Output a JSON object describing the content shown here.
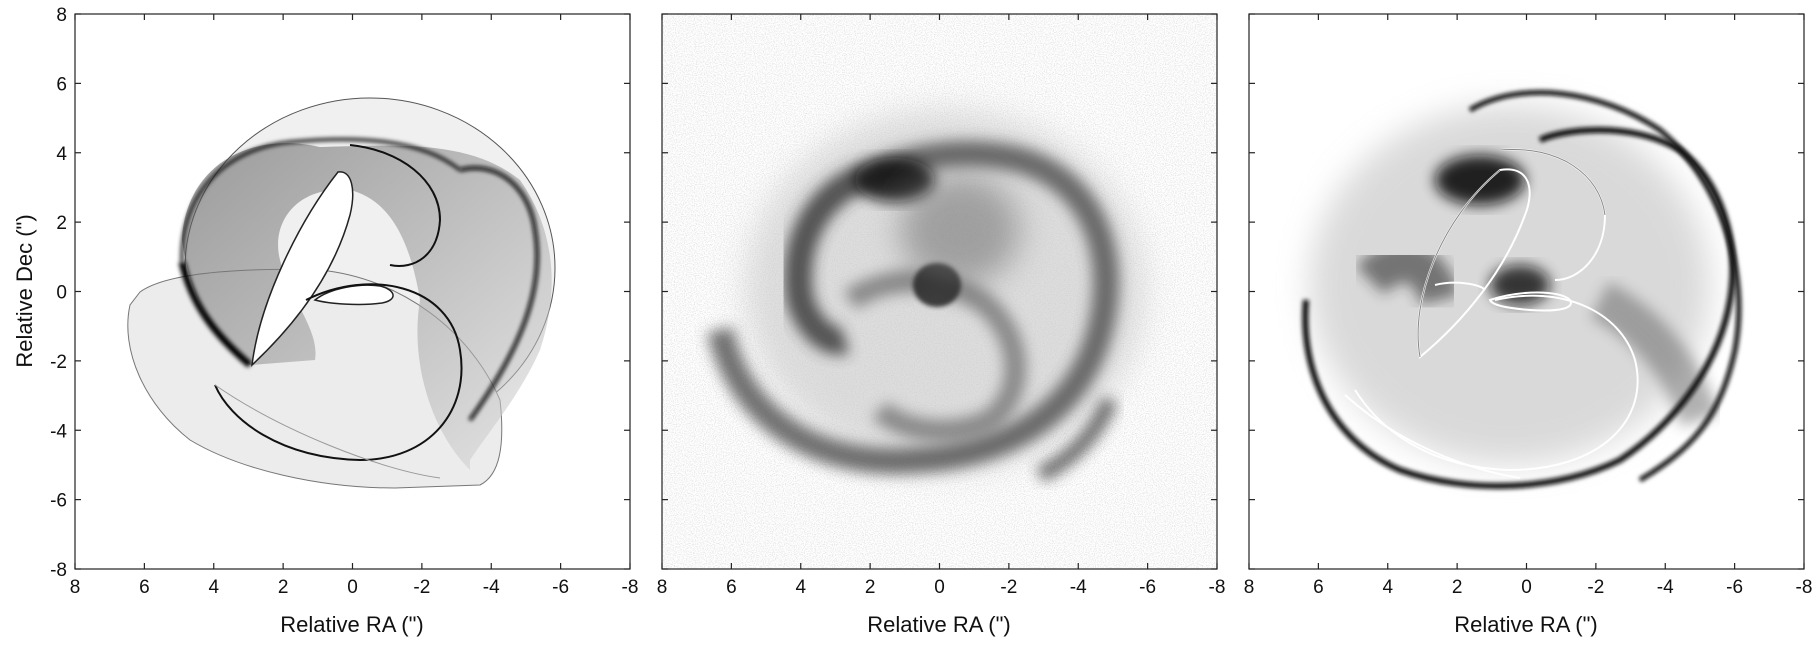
{
  "figure": {
    "panels": [
      {
        "id": "model",
        "xlabel": "Relative RA (\")",
        "ylabel": "Relative Dec (\")",
        "show_yticklabels": true
      },
      {
        "id": "observation",
        "xlabel": "Relative RA (\")",
        "ylabel": "",
        "show_yticklabels": false
      },
      {
        "id": "overlay",
        "xlabel": "Relative RA (\")",
        "ylabel": "",
        "show_yticklabels": false
      }
    ]
  },
  "chart_data": [
    {
      "type": "heatmap",
      "title": "",
      "xlabel": "Relative RA (\")",
      "ylabel": "Relative Dec (\")",
      "xlim": [
        8,
        -8
      ],
      "ylim": [
        -8,
        8
      ],
      "xticks": [
        8,
        6,
        4,
        2,
        0,
        -2,
        -4,
        -6,
        -8
      ],
      "yticks": [
        -8,
        -6,
        -4,
        -2,
        0,
        2,
        4,
        6,
        8
      ],
      "grid": false,
      "colormap": "grayscale-inverted",
      "content": "model spiral shell structure"
    },
    {
      "type": "heatmap",
      "title": "",
      "xlabel": "Relative RA (\")",
      "ylabel": "",
      "xlim": [
        8,
        -8
      ],
      "ylim": [
        -8,
        8
      ],
      "xticks": [
        8,
        6,
        4,
        2,
        0,
        -2,
        -4,
        -6,
        -8
      ],
      "yticks": [
        -8,
        -6,
        -4,
        -2,
        0,
        2,
        4,
        6,
        8
      ],
      "grid": false,
      "colormap": "grayscale-inverted",
      "content": "observed spiral nebula image"
    },
    {
      "type": "heatmap",
      "title": "",
      "xlabel": "Relative RA (\")",
      "ylabel": "",
      "xlim": [
        8,
        -8
      ],
      "ylim": [
        -8,
        8
      ],
      "xticks": [
        8,
        6,
        4,
        2,
        0,
        -2,
        -4,
        -6,
        -8
      ],
      "yticks": [
        -8,
        -6,
        -4,
        -2,
        0,
        2,
        4,
        6,
        8
      ],
      "grid": false,
      "colormap": "grayscale-inverted",
      "content": "observed image with model edge overlay"
    }
  ]
}
